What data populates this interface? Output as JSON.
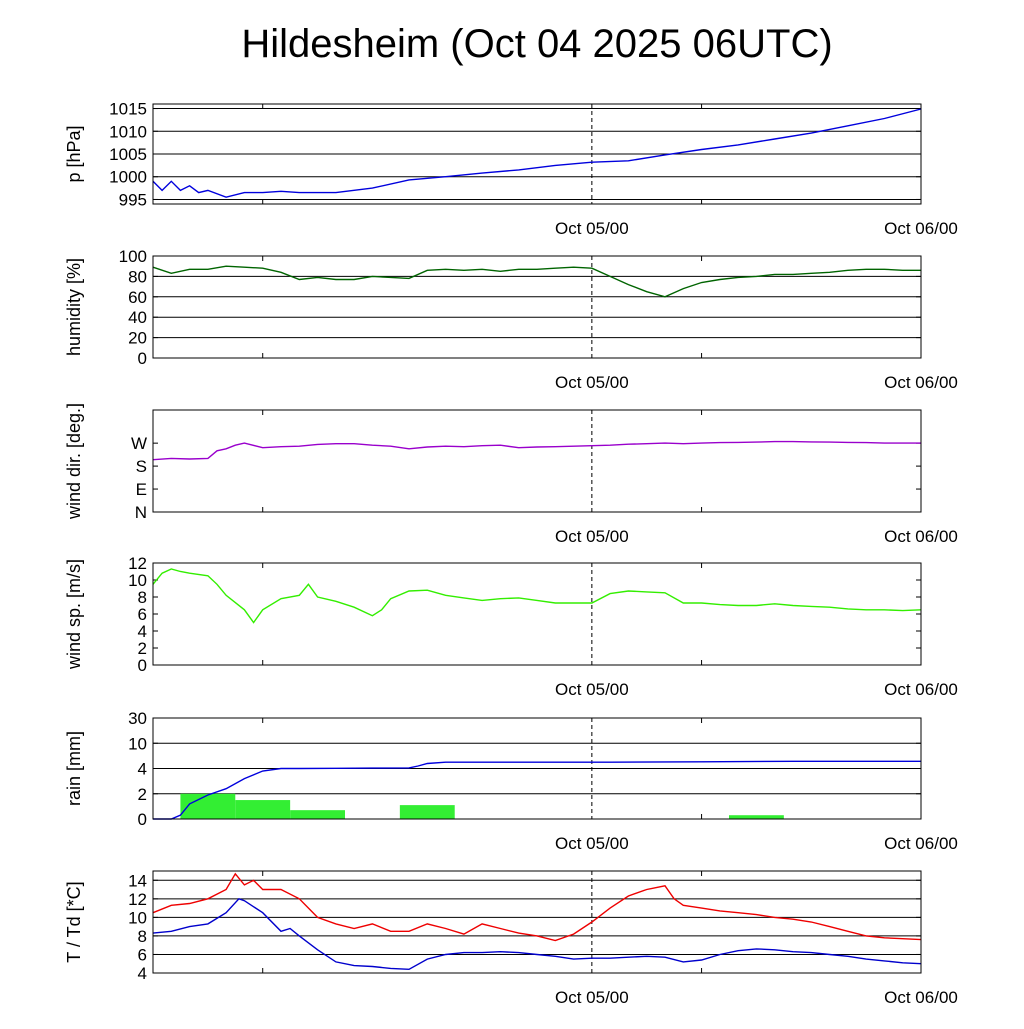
{
  "title": "Hildesheim (Oct 04 2025 06UTC)",
  "x_axis": {
    "start": "Oct 04 06UTC",
    "end": "Oct 06 00UTC",
    "ticks": [
      "Oct 05/00",
      "Oct 06/00"
    ],
    "marker": "Oct 05/00"
  },
  "colors": {
    "pressure": "#0000dd",
    "humidity": "#006400",
    "wind_dir": "#9900cc",
    "wind_speed": "#33ee00",
    "rain_bars": "#33ee33",
    "rain_total": "#0000dd",
    "temperature": "#ee0000",
    "dewpoint": "#0000cc"
  },
  "chart_data": [
    {
      "type": "line",
      "ylabel": "p [hPa]",
      "ylim": [
        994,
        1016
      ],
      "yticks": [
        "995",
        "1000",
        "1005",
        "1010",
        "1015"
      ],
      "ytick_values": [
        995,
        1000,
        1005,
        1010,
        1015
      ],
      "grid": true,
      "series": [
        {
          "x": [
            0,
            0.5,
            1,
            1.5,
            2,
            2.5,
            3,
            4,
            5,
            6,
            7,
            8,
            10,
            12,
            14,
            16,
            18,
            20,
            22,
            24,
            26,
            28,
            30,
            32,
            34,
            36,
            38,
            40,
            42
          ],
          "values": [
            999,
            997,
            999,
            997,
            998,
            996.5,
            997,
            995.5,
            996.5,
            996.5,
            996.8,
            996.5,
            996.5,
            997.5,
            999.3,
            1000,
            1000.8,
            1001.5,
            1002.5,
            1003.2,
            1003.5,
            1004.8,
            1006,
            1007,
            1008.3,
            1009.6,
            1011.2,
            1012.8,
            1014.9
          ]
        }
      ]
    },
    {
      "type": "line",
      "ylabel": "humidity [%]",
      "ylim": [
        0,
        100
      ],
      "yticks": [
        "0",
        "20",
        "40",
        "60",
        "80",
        "100"
      ],
      "ytick_values": [
        0,
        20,
        40,
        60,
        80,
        100
      ],
      "grid": true,
      "series": [
        {
          "x": [
            0,
            1,
            2,
            3,
            4,
            5,
            6,
            7,
            8,
            9,
            10,
            11,
            12,
            13,
            14,
            15,
            16,
            17,
            18,
            19,
            20,
            21,
            22,
            23,
            24,
            25,
            26,
            27,
            28,
            29,
            30,
            31,
            32,
            33,
            34,
            35,
            36,
            37,
            38,
            39,
            40,
            41,
            42
          ],
          "values": [
            89,
            83,
            87,
            87,
            90,
            89,
            88,
            84,
            77,
            79,
            77,
            77,
            80,
            79,
            78,
            86,
            87,
            86,
            87,
            85,
            87,
            87,
            88,
            89,
            88,
            80,
            72,
            65,
            60,
            68,
            74,
            77,
            79,
            80,
            82,
            82,
            83,
            84,
            86,
            87,
            87,
            86,
            86
          ]
        }
      ]
    },
    {
      "type": "line",
      "ylabel": "wind dir. [deg.]",
      "ylim": [
        0,
        400
      ],
      "yticks": [
        "N",
        "E",
        "S",
        "W"
      ],
      "ytick_values": [
        0,
        90,
        180,
        270
      ],
      "grid": false,
      "series": [
        {
          "x": [
            0,
            1,
            2,
            3,
            3.5,
            4,
            4.5,
            5,
            6,
            7,
            8,
            9,
            10,
            11,
            12,
            13,
            14,
            15,
            16,
            17,
            18,
            19,
            20,
            21,
            22,
            23,
            24,
            25,
            26,
            27,
            28,
            29,
            30,
            31,
            32,
            33,
            34,
            35,
            36,
            37,
            38,
            39,
            40,
            41,
            42
          ],
          "values": [
            205,
            210,
            208,
            210,
            240,
            248,
            262,
            270,
            252,
            256,
            258,
            265,
            268,
            268,
            262,
            258,
            248,
            255,
            258,
            256,
            260,
            262,
            252,
            255,
            256,
            258,
            260,
            262,
            266,
            268,
            270,
            268,
            270,
            272,
            273,
            274,
            276,
            276,
            275,
            274,
            273,
            272,
            270,
            270,
            270
          ]
        }
      ]
    },
    {
      "type": "line",
      "ylabel": "wind sp. [m/s]",
      "ylim": [
        0,
        12
      ],
      "yticks": [
        "0",
        "2",
        "4",
        "6",
        "8",
        "10",
        "12"
      ],
      "ytick_values": [
        0,
        2,
        4,
        6,
        8,
        10,
        12
      ],
      "grid": false,
      "series": [
        {
          "x": [
            0,
            0.5,
            1,
            1.5,
            2,
            3,
            3.5,
            4,
            5,
            5.5,
            6,
            7,
            8,
            8.5,
            9,
            10,
            11,
            12,
            12.5,
            13,
            14,
            15,
            16,
            17,
            18,
            19,
            20,
            21,
            22,
            23,
            24,
            25,
            26,
            27,
            28,
            29,
            30,
            31,
            32,
            33,
            34,
            35,
            36,
            37,
            38,
            39,
            40,
            41,
            42
          ],
          "values": [
            9.5,
            10.8,
            11.3,
            11,
            10.8,
            10.5,
            9.5,
            8.2,
            6.5,
            5,
            6.5,
            7.8,
            8.2,
            9.5,
            8,
            7.5,
            6.8,
            5.8,
            6.5,
            7.8,
            8.7,
            8.8,
            8.2,
            7.9,
            7.6,
            7.8,
            7.9,
            7.6,
            7.3,
            7.3,
            7.3,
            8.4,
            8.7,
            8.6,
            8.5,
            7.3,
            7.3,
            7.1,
            7,
            7,
            7.2,
            7,
            6.9,
            6.8,
            6.6,
            6.5,
            6.5,
            6.4,
            6.5
          ]
        }
      ]
    },
    {
      "type": "bar",
      "ylabel": "rain [mm]",
      "ylim": [
        0,
        30
      ],
      "yticks": [
        "0",
        "2",
        "4",
        "10",
        "30"
      ],
      "ytick_values": [
        0,
        2,
        4,
        10,
        30
      ],
      "scale": "nonlinear",
      "grid": true,
      "bars": [
        {
          "start": 1.5,
          "end": 4.5,
          "value": 2.0
        },
        {
          "start": 4.5,
          "end": 7.5,
          "value": 1.5
        },
        {
          "start": 7.5,
          "end": 10.5,
          "value": 0.7
        },
        {
          "start": 13.5,
          "end": 16.5,
          "value": 1.1
        },
        {
          "start": 31.5,
          "end": 34.5,
          "value": 0.3
        }
      ],
      "series": [
        {
          "name": "total",
          "x": [
            0,
            1,
            1.5,
            2,
            3,
            4,
            5,
            6,
            7,
            8,
            10,
            12,
            14,
            14.5,
            15,
            16,
            20,
            25,
            30,
            35,
            42
          ],
          "values": [
            0,
            0,
            0.3,
            1.2,
            1.9,
            2.4,
            3.2,
            3.8,
            4.0,
            4.0,
            4.05,
            4.1,
            4.15,
            4.6,
            5.2,
            5.5,
            5.5,
            5.5,
            5.6,
            5.7,
            5.7
          ]
        }
      ]
    },
    {
      "type": "line",
      "ylabel": "T / Td [*C]",
      "ylim": [
        4,
        15
      ],
      "yticks": [
        "4",
        "6",
        "8",
        "10",
        "12",
        "14"
      ],
      "ytick_values": [
        4,
        6,
        8,
        10,
        12,
        14
      ],
      "grid": true,
      "series": [
        {
          "name": "T",
          "x": [
            0,
            1,
            2,
            3,
            4,
            4.5,
            5,
            5.5,
            6,
            7,
            8,
            9,
            10,
            11,
            12,
            13,
            14,
            15,
            16,
            17,
            18,
            19,
            20,
            21,
            22,
            23,
            24,
            25,
            26,
            27,
            28,
            28.5,
            29,
            30,
            31,
            32,
            33,
            34,
            35,
            36,
            37,
            38,
            39,
            40,
            41,
            42
          ],
          "values": [
            10.5,
            11.3,
            11.5,
            12,
            13,
            14.7,
            13.5,
            14,
            13,
            13,
            12,
            10,
            9.3,
            8.8,
            9.3,
            8.5,
            8.5,
            9.3,
            8.8,
            8.2,
            9.3,
            8.8,
            8.3,
            8,
            7.5,
            8.2,
            9.5,
            11,
            12.3,
            13,
            13.4,
            12,
            11.3,
            11,
            10.7,
            10.5,
            10.3,
            10,
            9.8,
            9.5,
            9,
            8.5,
            8,
            7.8,
            7.7,
            7.6
          ]
        },
        {
          "name": "Td",
          "x": [
            0,
            1,
            2,
            3,
            4,
            4.7,
            5,
            6,
            7,
            7.5,
            8,
            9,
            10,
            11,
            12,
            13,
            14,
            15,
            16,
            17,
            18,
            19,
            20,
            21,
            22,
            23,
            24,
            25,
            26,
            27,
            28,
            29,
            30,
            31,
            32,
            33,
            34,
            35,
            36,
            37,
            38,
            39,
            40,
            41,
            42
          ],
          "values": [
            8.3,
            8.5,
            9,
            9.3,
            10.5,
            12,
            11.8,
            10.5,
            8.5,
            8.8,
            8,
            6.5,
            5.2,
            4.8,
            4.7,
            4.5,
            4.4,
            5.5,
            6,
            6.2,
            6.2,
            6.3,
            6.2,
            6,
            5.8,
            5.5,
            5.6,
            5.6,
            5.7,
            5.8,
            5.7,
            5.2,
            5.4,
            6,
            6.4,
            6.6,
            6.5,
            6.3,
            6.2,
            6,
            5.8,
            5.5,
            5.3,
            5.1,
            5
          ]
        }
      ]
    }
  ]
}
